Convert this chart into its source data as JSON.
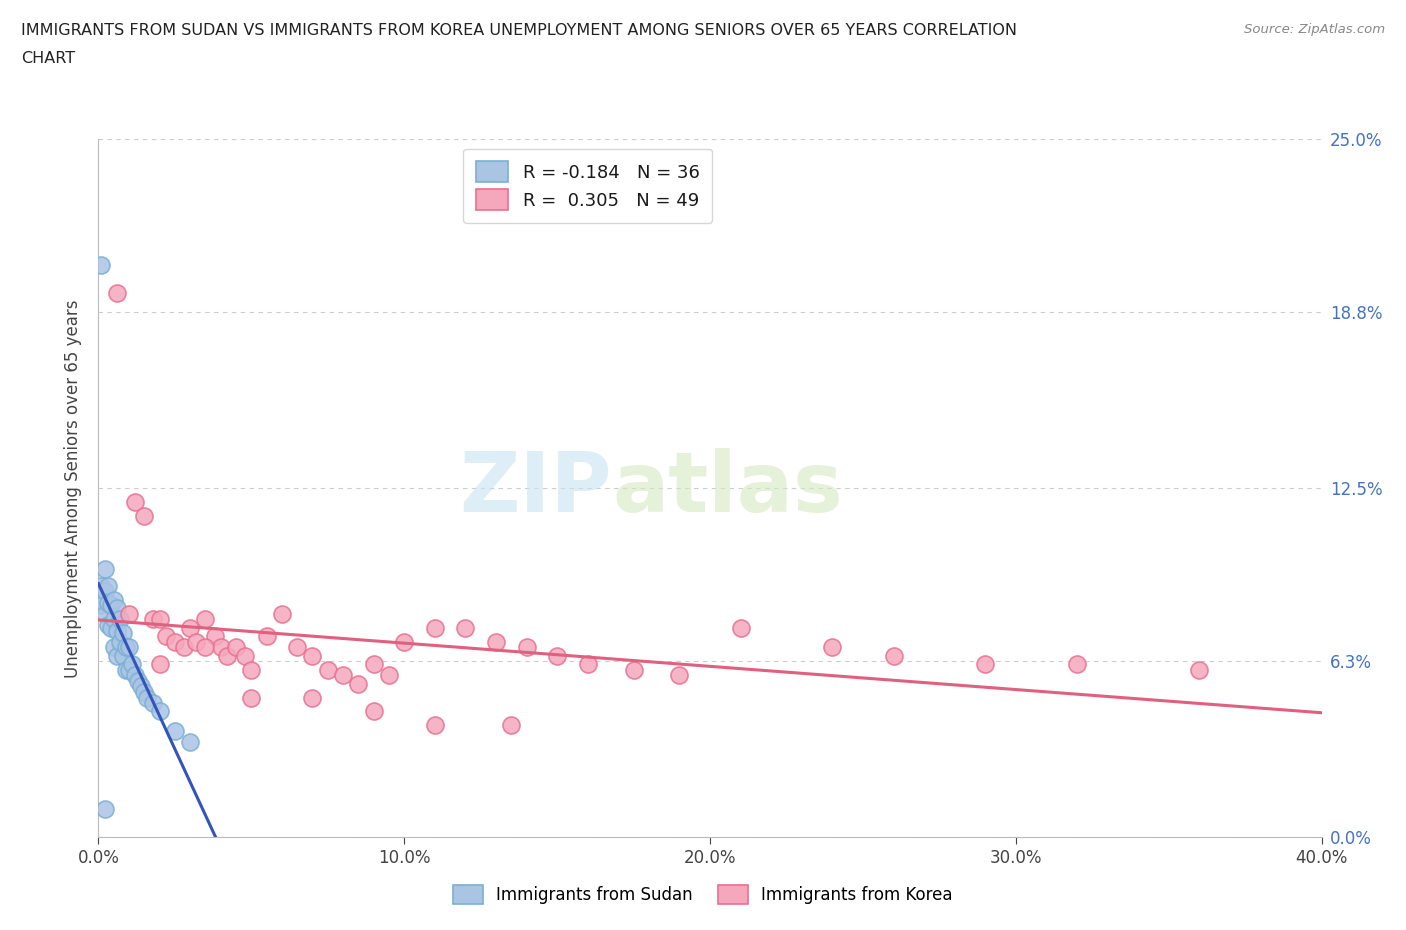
{
  "title_line1": "IMMIGRANTS FROM SUDAN VS IMMIGRANTS FROM KOREA UNEMPLOYMENT AMONG SENIORS OVER 65 YEARS CORRELATION",
  "title_line2": "CHART",
  "source": "Source: ZipAtlas.com",
  "ylabel": "Unemployment Among Seniors over 65 years",
  "xlim": [
    0.0,
    0.4
  ],
  "ylim": [
    0.0,
    0.25
  ],
  "xticks": [
    0.0,
    0.1,
    0.2,
    0.3,
    0.4
  ],
  "xtick_labels": [
    "0.0%",
    "10.0%",
    "20.0%",
    "30.0%",
    "40.0%"
  ],
  "ytick_labels": [
    "0.0%",
    "6.3%",
    "12.5%",
    "18.8%",
    "25.0%"
  ],
  "ytick_values": [
    0.0,
    0.063,
    0.125,
    0.188,
    0.25
  ],
  "sudan_color": "#aac4e4",
  "korea_color": "#f5a8bc",
  "sudan_edge": "#7aafd4",
  "korea_edge": "#e87090",
  "sudan_line_color": "#3355bb",
  "korea_line_color": "#e06080",
  "watermark_zip": "ZIP",
  "watermark_atlas": "atlas",
  "legend_sudan_label": "R = -0.184   N = 36",
  "legend_korea_label": "R =  0.305   N = 49",
  "sudan_bottom_label": "Immigrants from Sudan",
  "korea_bottom_label": "Immigrants from Korea",
  "sudan_x": [
    0.001,
    0.001,
    0.001,
    0.002,
    0.002,
    0.002,
    0.003,
    0.003,
    0.003,
    0.004,
    0.004,
    0.005,
    0.005,
    0.005,
    0.006,
    0.006,
    0.006,
    0.007,
    0.007,
    0.008,
    0.008,
    0.009,
    0.009,
    0.01,
    0.01,
    0.011,
    0.012,
    0.013,
    0.014,
    0.015,
    0.016,
    0.018,
    0.02,
    0.025,
    0.03,
    0.002
  ],
  "sudan_y": [
    0.205,
    0.09,
    0.083,
    0.096,
    0.088,
    0.08,
    0.09,
    0.084,
    0.076,
    0.083,
    0.075,
    0.085,
    0.078,
    0.068,
    0.082,
    0.074,
    0.065,
    0.078,
    0.07,
    0.073,
    0.065,
    0.068,
    0.06,
    0.068,
    0.06,
    0.062,
    0.058,
    0.056,
    0.054,
    0.052,
    0.05,
    0.048,
    0.045,
    0.038,
    0.034,
    0.01
  ],
  "korea_x": [
    0.006,
    0.01,
    0.012,
    0.015,
    0.018,
    0.02,
    0.022,
    0.025,
    0.028,
    0.03,
    0.032,
    0.035,
    0.038,
    0.04,
    0.042,
    0.045,
    0.048,
    0.05,
    0.055,
    0.06,
    0.065,
    0.07,
    0.075,
    0.08,
    0.085,
    0.09,
    0.095,
    0.1,
    0.11,
    0.12,
    0.13,
    0.14,
    0.15,
    0.16,
    0.175,
    0.19,
    0.21,
    0.24,
    0.26,
    0.29,
    0.32,
    0.36,
    0.02,
    0.035,
    0.05,
    0.07,
    0.09,
    0.11,
    0.135
  ],
  "korea_y": [
    0.195,
    0.08,
    0.12,
    0.115,
    0.078,
    0.078,
    0.072,
    0.07,
    0.068,
    0.075,
    0.07,
    0.078,
    0.072,
    0.068,
    0.065,
    0.068,
    0.065,
    0.06,
    0.072,
    0.08,
    0.068,
    0.065,
    0.06,
    0.058,
    0.055,
    0.062,
    0.058,
    0.07,
    0.075,
    0.075,
    0.07,
    0.068,
    0.065,
    0.062,
    0.06,
    0.058,
    0.075,
    0.068,
    0.065,
    0.062,
    0.062,
    0.06,
    0.062,
    0.068,
    0.05,
    0.05,
    0.045,
    0.04,
    0.04
  ]
}
